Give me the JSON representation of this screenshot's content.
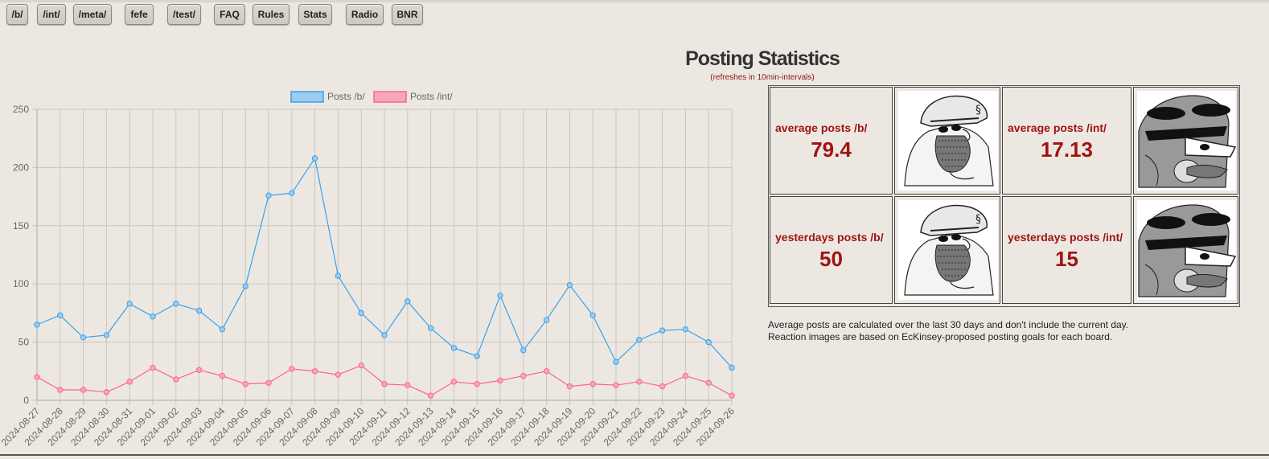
{
  "nav": {
    "items": [
      "/b/",
      "/int/",
      "/meta/",
      "fefe",
      "/test/",
      "FAQ",
      "Rules",
      "Stats",
      "Radio",
      "BNR"
    ]
  },
  "header": {
    "title": "Posting Statistics",
    "subtitle": "(refreshes in 10min-intervals)"
  },
  "stats": {
    "avg_b_label": "average posts /b/",
    "avg_b_value": "79.4",
    "avg_int_label": "average posts /int/",
    "avg_int_value": "17.13",
    "yest_b_label": "yesterdays posts /b/",
    "yest_b_value": "50",
    "yest_int_label": "yesterdays posts /int/",
    "yest_int_value": "15"
  },
  "notes": {
    "line1": "Average posts are calculated over the last 30 days and don't include the current day.",
    "line2": "Reaction images are based on EcKinsey-proposed posting goals for each board."
  },
  "colors": {
    "accent_red": "#a11313",
    "series_b": "#36a2eb",
    "series_int": "#ff6384"
  },
  "chart_data": {
    "type": "line",
    "title": "",
    "xlabel": "",
    "ylabel": "",
    "ylim": [
      0,
      250
    ],
    "yticks": [
      0,
      50,
      100,
      150,
      200,
      250
    ],
    "grid": true,
    "legend_position": "top",
    "x": [
      "2024-08-27",
      "2024-08-28",
      "2024-08-29",
      "2024-08-30",
      "2024-08-31",
      "2024-09-01",
      "2024-09-02",
      "2024-09-03",
      "2024-09-04",
      "2024-09-05",
      "2024-09-06",
      "2024-09-07",
      "2024-09-08",
      "2024-09-09",
      "2024-09-10",
      "2024-09-11",
      "2024-09-12",
      "2024-09-13",
      "2024-09-14",
      "2024-09-15",
      "2024-09-16",
      "2024-09-17",
      "2024-09-18",
      "2024-09-19",
      "2024-09-20",
      "2024-09-21",
      "2024-09-22",
      "2024-09-23",
      "2024-09-24",
      "2024-09-25",
      "2024-09-26"
    ],
    "series": [
      {
        "name": "Posts /b/",
        "color": "#36a2eb",
        "values": [
          65,
          73,
          54,
          56,
          83,
          72,
          83,
          77,
          61,
          98,
          176,
          178,
          208,
          107,
          75,
          56,
          85,
          62,
          45,
          38,
          90,
          43,
          69,
          99,
          73,
          33,
          52,
          60,
          61,
          50,
          28
        ]
      },
      {
        "name": "Posts /int/",
        "color": "#ff6384",
        "values": [
          20,
          9,
          9,
          7,
          16,
          28,
          18,
          26,
          21,
          14,
          15,
          27,
          25,
          22,
          30,
          14,
          13,
          4,
          16,
          14,
          17,
          21,
          25,
          12,
          14,
          13,
          16,
          12,
          21,
          15,
          4
        ]
      }
    ]
  }
}
